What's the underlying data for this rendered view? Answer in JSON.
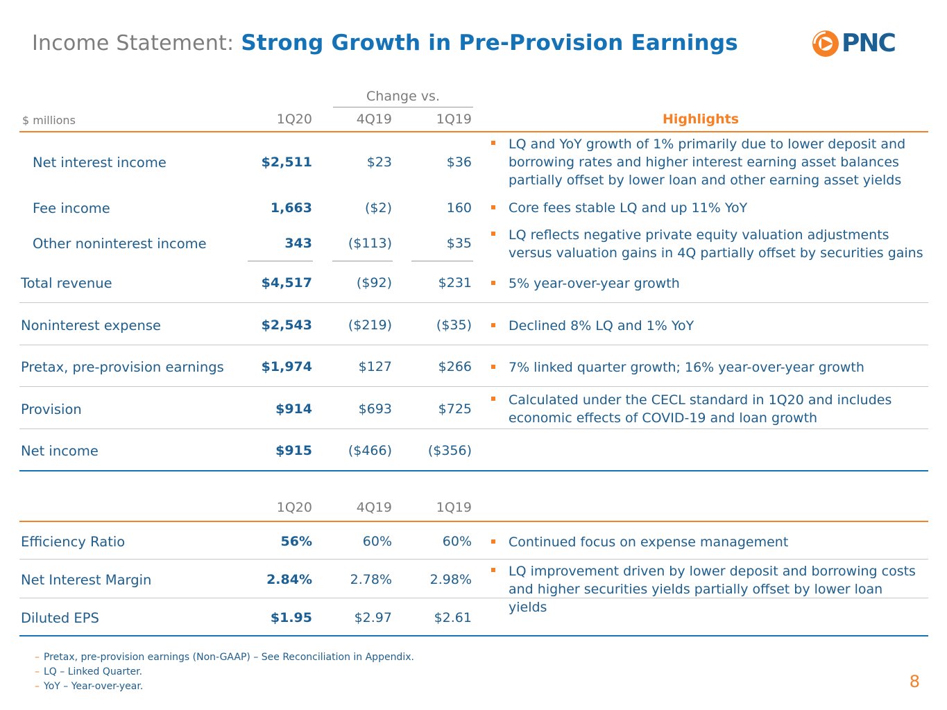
{
  "header": {
    "title_prefix": "Income Statement:",
    "title_main": "Strong Growth in Pre-Provision Earnings",
    "logo_text": "PNC"
  },
  "table1": {
    "change_label": "Change vs.",
    "unit_label": "$ millions",
    "columns": [
      "1Q20",
      "4Q19",
      "1Q19"
    ],
    "highlights_title": "Highlights",
    "rows": [
      {
        "label": "Net interest income",
        "v1": "$2,511",
        "v2": "$23",
        "v3": "$36",
        "note": "LQ and YoY growth of 1% primarily due to lower deposit and borrowing rates and higher interest earning asset balances partially offset by lower loan and other earning asset yields"
      },
      {
        "label": "Fee income",
        "v1": "1,663",
        "v2": "($2)",
        "v3": "160",
        "note": "Core fees stable LQ and up 11% YoY"
      },
      {
        "label": "Other noninterest income",
        "v1": "343",
        "v2": "($113)",
        "v3": "$35",
        "note": "LQ reflects negative private equity valuation adjustments versus valuation gains in 4Q partially offset by securities gains"
      },
      {
        "label": "Total revenue",
        "v1": "$4,517",
        "v2": "($92)",
        "v3": "$231",
        "note": "5% year-over-year growth"
      },
      {
        "label": "Noninterest expense",
        "v1": "$2,543",
        "v2": "($219)",
        "v3": "($35)",
        "note": "Declined 8% LQ and 1% YoY"
      },
      {
        "label": "Pretax, pre-provision earnings",
        "v1": "$1,974",
        "v2": "$127",
        "v3": "$266",
        "note": "7% linked quarter growth; 16% year-over-year growth"
      },
      {
        "label": "Provision",
        "v1": "$914",
        "v2": "$693",
        "v3": "$725",
        "note": "Calculated under the CECL standard in 1Q20 and includes economic effects of COVID-19 and loan growth"
      },
      {
        "label": "Net income",
        "v1": "$915",
        "v2": "($466)",
        "v3": "($356)",
        "note": ""
      }
    ]
  },
  "table2": {
    "columns": [
      "1Q20",
      "4Q19",
      "1Q19"
    ],
    "rows": [
      {
        "label": "Efficiency Ratio",
        "v1": "56%",
        "v2": "60%",
        "v3": "60%",
        "note": "Continued focus on expense management"
      },
      {
        "label": "Net Interest Margin",
        "v1": "2.84%",
        "v2": "2.78%",
        "v3": "2.98%",
        "note": "LQ improvement driven by lower deposit and borrowing costs and higher securities yields partially offset by lower loan yields"
      },
      {
        "label": "Diluted EPS",
        "v1": "$1.95",
        "v2": "$2.97",
        "v3": "$2.61",
        "note": ""
      }
    ]
  },
  "footnotes": [
    "Pretax, pre-provision earnings (Non-GAAP) – See Reconciliation in Appendix.",
    "LQ – Linked Quarter.",
    "YoY – Year-over-year."
  ],
  "page_number": "8",
  "colors": {
    "orange": "#f58025",
    "blue": "#1572b6",
    "text_blue": "#1f5d8c",
    "gray": "#7b7b7b"
  }
}
